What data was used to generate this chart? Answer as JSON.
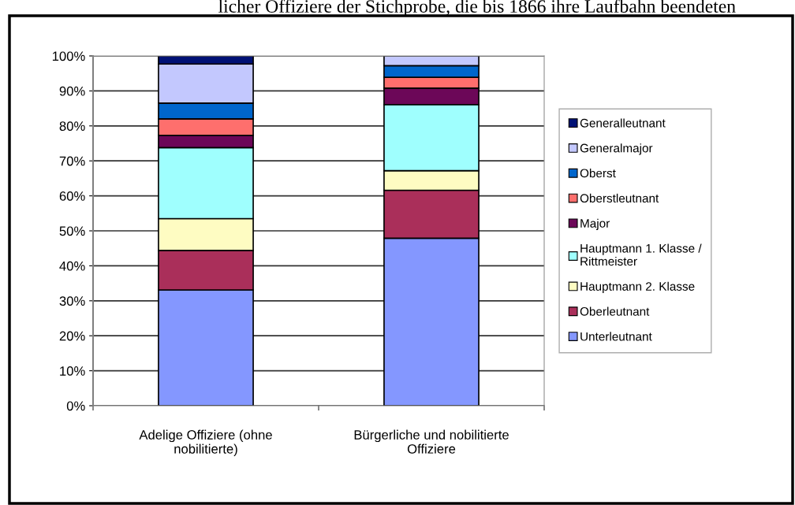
{
  "chart_data": {
    "type": "bar",
    "stacked": true,
    "title": "licher Offiziere der Stichprobe, die bis 1866 ihre Laufbahn beendeten",
    "categories": [
      "Adelige Offiziere (ohne\nnobilitierte)",
      "Bürgerliche und nobilitierte\nOffiziere"
    ],
    "series": [
      {
        "name": "Unterleutnant",
        "color": "#8497ff",
        "values": [
          33.1,
          47.9
        ]
      },
      {
        "name": "Oberleutnant",
        "color": "#aa2f5a",
        "values": [
          11.3,
          13.7
        ]
      },
      {
        "name": "Hauptmann 2. Klasse",
        "color": "#fefcc2",
        "values": [
          9.1,
          5.6
        ]
      },
      {
        "name": "Hauptmann 1. Klasse /\nRittmeister",
        "color": "#9ffffe",
        "values": [
          20.3,
          18.9
        ]
      },
      {
        "name": "Major",
        "color": "#6c0758",
        "values": [
          3.5,
          4.7
        ]
      },
      {
        "name": "Oberstleutnant",
        "color": "#fe6f6d",
        "values": [
          4.7,
          3.1
        ]
      },
      {
        "name": "Oberst",
        "color": "#0066cc",
        "values": [
          4.5,
          3.3
        ]
      },
      {
        "name": "Generalmajor",
        "color": "#c3c8fe",
        "values": [
          11.2,
          2.8
        ]
      },
      {
        "name": "Generalleutnant",
        "color": "#001175",
        "values": [
          2.3,
          0
        ]
      }
    ],
    "ylim": [
      0,
      100
    ],
    "yticks": [
      {
        "value": 0,
        "label": "0%"
      },
      {
        "value": 10,
        "label": "10%"
      },
      {
        "value": 20,
        "label": "20%"
      },
      {
        "value": 30,
        "label": "30%"
      },
      {
        "value": 40,
        "label": "40%"
      },
      {
        "value": 50,
        "label": "50%"
      },
      {
        "value": 60,
        "label": "60%"
      },
      {
        "value": 70,
        "label": "70%"
      },
      {
        "value": 80,
        "label": "80%"
      },
      {
        "value": 90,
        "label": "90%"
      },
      {
        "value": 100,
        "label": "100%"
      }
    ],
    "grid": "y",
    "legend": "right"
  }
}
